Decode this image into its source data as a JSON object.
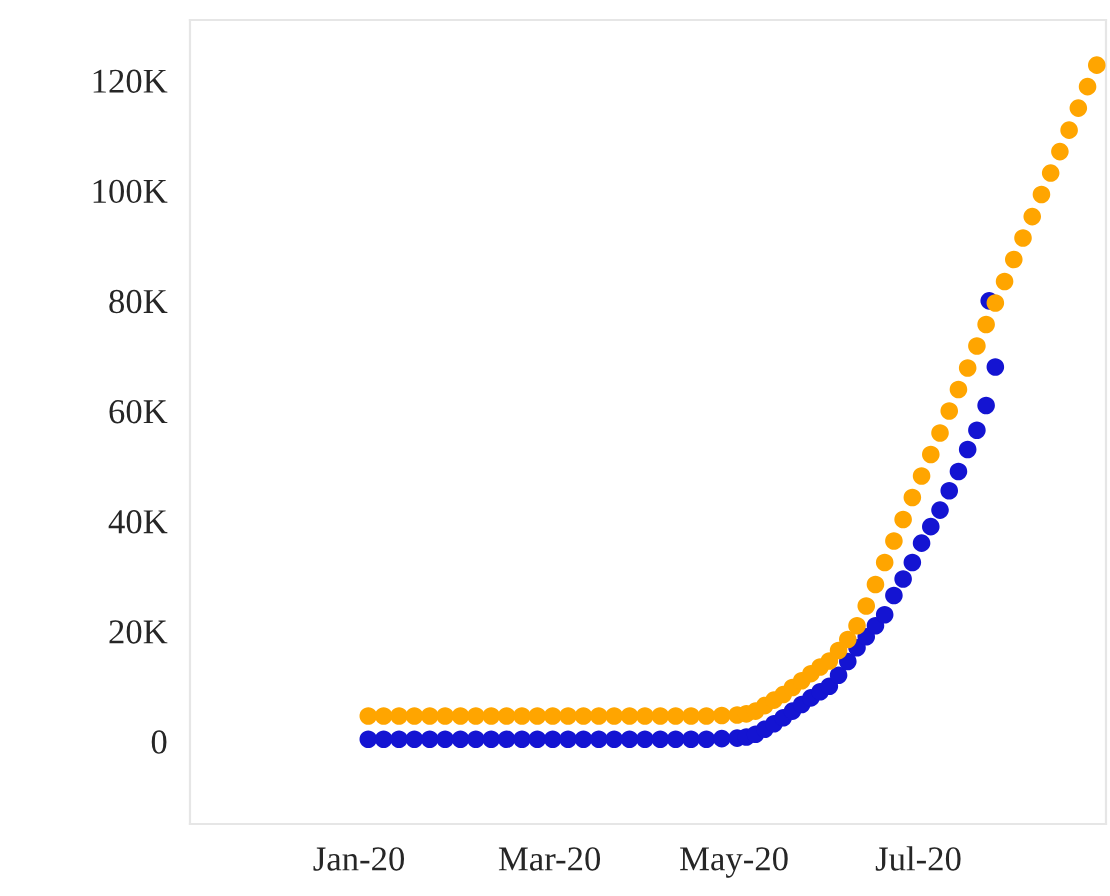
{
  "chart_data": {
    "type": "scatter",
    "marker": "circle",
    "grid": false,
    "xlim": [
      "2019-11-07",
      "2020-08-31"
    ],
    "ylim": [
      -15000,
      131000
    ],
    "xticks": [
      {
        "value": "2020-01-01",
        "label": "Jan-20"
      },
      {
        "value": "2020-03-03",
        "label": "Mar-20"
      },
      {
        "value": "2020-05-02",
        "label": "May-20"
      },
      {
        "value": "2020-07-01",
        "label": "Jul-20"
      }
    ],
    "yticks": [
      0,
      {
        "value": 20000,
        "label": "20K"
      },
      {
        "value": 40000,
        "label": "40K"
      },
      {
        "value": 60000,
        "label": "60K"
      },
      {
        "value": 80000,
        "label": "80K"
      },
      {
        "value": 100000,
        "label": "100K"
      },
      {
        "value": 120000,
        "label": "120K"
      }
    ],
    "series": [
      {
        "color": "#1414d2",
        "x": [
          "2020-01-04",
          "2020-01-09",
          "2020-01-14",
          "2020-01-19",
          "2020-01-24",
          "2020-01-29",
          "2020-02-03",
          "2020-02-08",
          "2020-02-13",
          "2020-02-18",
          "2020-02-23",
          "2020-02-28",
          "2020-03-04",
          "2020-03-09",
          "2020-03-14",
          "2020-03-19",
          "2020-03-24",
          "2020-03-29",
          "2020-04-03",
          "2020-04-08",
          "2020-04-13",
          "2020-04-18",
          "2020-04-23",
          "2020-04-28",
          "2020-05-03",
          "2020-05-06",
          "2020-05-09",
          "2020-05-12",
          "2020-05-15",
          "2020-05-18",
          "2020-05-21",
          "2020-05-24",
          "2020-05-27",
          "2020-05-30",
          "2020-06-02",
          "2020-06-05",
          "2020-06-08",
          "2020-06-11",
          "2020-06-14",
          "2020-06-17",
          "2020-06-20",
          "2020-06-23",
          "2020-06-26",
          "2020-06-29",
          "2020-07-02",
          "2020-07-05",
          "2020-07-08",
          "2020-07-11",
          "2020-07-14",
          "2020-07-17",
          "2020-07-20",
          "2020-07-23",
          "2020-07-26",
          "2020-07-24"
        ],
        "values": [
          400,
          400,
          400,
          400,
          400,
          400,
          400,
          400,
          400,
          400,
          400,
          400,
          400,
          400,
          400,
          400,
          400,
          400,
          400,
          400,
          400,
          400,
          400,
          500,
          600,
          800,
          1300,
          2200,
          3200,
          4300,
          5500,
          6700,
          7900,
          9000,
          10000,
          12000,
          14500,
          17000,
          19000,
          21000,
          23000,
          26500,
          29500,
          32500,
          36000,
          39000,
          42000,
          45500,
          49000,
          53000,
          56500,
          61000,
          68000,
          80000
        ]
      },
      {
        "color": "#ffa500",
        "x": [
          "2020-01-04",
          "2020-01-09",
          "2020-01-14",
          "2020-01-19",
          "2020-01-24",
          "2020-01-29",
          "2020-02-03",
          "2020-02-08",
          "2020-02-13",
          "2020-02-18",
          "2020-02-23",
          "2020-02-28",
          "2020-03-04",
          "2020-03-09",
          "2020-03-14",
          "2020-03-19",
          "2020-03-24",
          "2020-03-29",
          "2020-04-03",
          "2020-04-08",
          "2020-04-13",
          "2020-04-18",
          "2020-04-23",
          "2020-04-28",
          "2020-05-03",
          "2020-05-06",
          "2020-05-09",
          "2020-05-12",
          "2020-05-15",
          "2020-05-18",
          "2020-05-21",
          "2020-05-24",
          "2020-05-27",
          "2020-05-30",
          "2020-06-02",
          "2020-06-05",
          "2020-06-08",
          "2020-06-11",
          "2020-06-14",
          "2020-06-17",
          "2020-06-20",
          "2020-06-23",
          "2020-06-26",
          "2020-06-29",
          "2020-07-02",
          "2020-07-05",
          "2020-07-08",
          "2020-07-11",
          "2020-07-14",
          "2020-07-17",
          "2020-07-20",
          "2020-07-23",
          "2020-07-26",
          "2020-07-29",
          "2020-08-01",
          "2020-08-04",
          "2020-08-07",
          "2020-08-10",
          "2020-08-13",
          "2020-08-16",
          "2020-08-19",
          "2020-08-22",
          "2020-08-25",
          "2020-08-28"
        ],
        "values": [
          4600,
          4600,
          4600,
          4600,
          4600,
          4600,
          4600,
          4600,
          4600,
          4600,
          4600,
          4600,
          4600,
          4600,
          4600,
          4600,
          4600,
          4600,
          4600,
          4600,
          4600,
          4600,
          4600,
          4700,
          4800,
          5000,
          5500,
          6500,
          7500,
          8500,
          9800,
          11000,
          12300,
          13500,
          14600,
          16500,
          18500,
          21000,
          24600,
          28500,
          32500,
          36400,
          40300,
          44300,
          48200,
          52100,
          56000,
          60000,
          63900,
          67800,
          71800,
          75700,
          79600,
          83500,
          87500,
          91400,
          95300,
          99300,
          103200,
          107100,
          111000,
          115000,
          118900,
          122800
        ]
      }
    ]
  }
}
